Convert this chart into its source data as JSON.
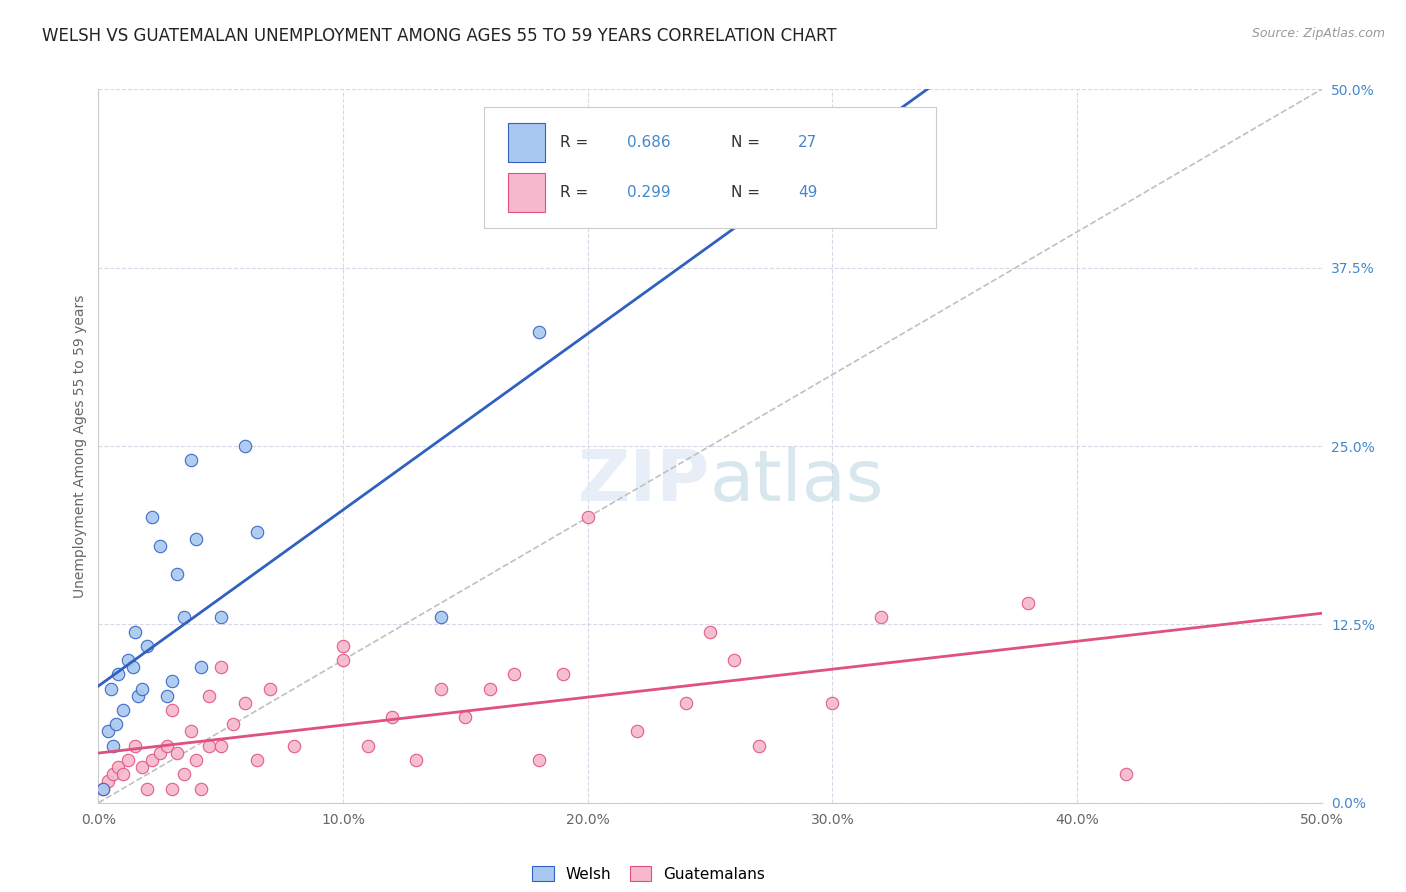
{
  "title": "WELSH VS GUATEMALAN UNEMPLOYMENT AMONG AGES 55 TO 59 YEARS CORRELATION CHART",
  "source": "Source: ZipAtlas.com",
  "ylabel": "Unemployment Among Ages 55 to 59 years",
  "xlim": [
    0.0,
    50.0
  ],
  "ylim": [
    0.0,
    50.0
  ],
  "xticks": [
    0.0,
    10.0,
    20.0,
    30.0,
    40.0,
    50.0
  ],
  "yticks_right": [
    0.0,
    12.5,
    25.0,
    37.5,
    50.0
  ],
  "xticklabels": [
    "0.0%",
    "10.0%",
    "20.0%",
    "30.0%",
    "40.0%",
    "50.0%"
  ],
  "yticklabels_right": [
    "0.0%",
    "12.5%",
    "25.0%",
    "37.5%",
    "50.0%"
  ],
  "welsh_color": "#a8c8f0",
  "guatemalan_color": "#f5b8cc",
  "welsh_line_color": "#3060c0",
  "guatemalan_line_color": "#e05080",
  "diagonal_color": "#c0c0c0",
  "background_color": "#ffffff",
  "grid_color": "#d8d8e8",
  "welsh_x": [
    0.2,
    0.4,
    0.5,
    0.6,
    0.7,
    0.8,
    1.0,
    1.2,
    1.4,
    1.5,
    1.6,
    1.8,
    2.0,
    2.2,
    2.5,
    2.8,
    3.0,
    3.2,
    3.5,
    3.8,
    4.0,
    4.2,
    5.0,
    6.0,
    6.5,
    14.0,
    18.0
  ],
  "welsh_y": [
    1.0,
    5.0,
    8.0,
    4.0,
    5.5,
    9.0,
    6.5,
    10.0,
    9.5,
    12.0,
    7.5,
    8.0,
    11.0,
    20.0,
    18.0,
    7.5,
    8.5,
    16.0,
    13.0,
    24.0,
    18.5,
    9.5,
    13.0,
    25.0,
    19.0,
    13.0,
    33.0
  ],
  "guatemalan_x": [
    0.2,
    0.4,
    0.6,
    0.8,
    1.0,
    1.2,
    1.5,
    1.8,
    2.0,
    2.2,
    2.5,
    2.8,
    3.0,
    3.2,
    3.5,
    3.8,
    4.0,
    4.2,
    4.5,
    5.0,
    5.5,
    6.0,
    6.5,
    7.0,
    8.0,
    10.0,
    11.0,
    12.0,
    13.0,
    14.0,
    15.0,
    16.0,
    17.0,
    18.0,
    19.0,
    20.0,
    22.0,
    24.0,
    25.0,
    26.0,
    27.0,
    30.0,
    32.0,
    38.0,
    42.0,
    3.0,
    4.5,
    10.0,
    5.0
  ],
  "guatemalan_y": [
    1.0,
    1.5,
    2.0,
    2.5,
    2.0,
    3.0,
    4.0,
    2.5,
    1.0,
    3.0,
    3.5,
    4.0,
    1.0,
    3.5,
    2.0,
    5.0,
    3.0,
    1.0,
    4.0,
    4.0,
    5.5,
    7.0,
    3.0,
    8.0,
    4.0,
    10.0,
    4.0,
    6.0,
    3.0,
    8.0,
    6.0,
    8.0,
    9.0,
    3.0,
    9.0,
    20.0,
    5.0,
    7.0,
    12.0,
    10.0,
    4.0,
    7.0,
    13.0,
    14.0,
    2.0,
    6.5,
    7.5,
    11.0,
    9.5
  ],
  "title_fontsize": 12,
  "axis_label_fontsize": 10,
  "tick_fontsize": 10,
  "source_fontsize": 9,
  "marker_size": 80,
  "r_welsh": "0.686",
  "n_welsh": "27",
  "r_guatemalan": "0.299",
  "n_guatemalan": "49"
}
